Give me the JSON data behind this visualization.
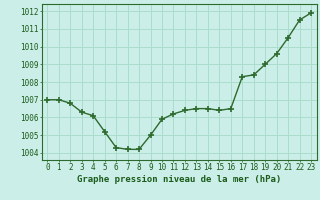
{
  "x": [
    0,
    1,
    2,
    3,
    4,
    5,
    6,
    7,
    8,
    9,
    10,
    11,
    12,
    13,
    14,
    15,
    16,
    17,
    18,
    19,
    20,
    21,
    22,
    23
  ],
  "y": [
    1007.0,
    1007.0,
    1006.8,
    1006.3,
    1006.1,
    1005.2,
    1004.3,
    1004.2,
    1004.2,
    1005.0,
    1005.9,
    1006.2,
    1006.4,
    1006.5,
    1006.5,
    1006.4,
    1006.5,
    1008.3,
    1008.4,
    1009.0,
    1009.6,
    1010.5,
    1011.5,
    1011.9
  ],
  "line_color": "#2d6a2d",
  "marker": "+",
  "marker_size": 4,
  "marker_lw": 1.2,
  "bg_color": "#cceee8",
  "grid_color": "#aaddcc",
  "ylabel_ticks": [
    1004,
    1005,
    1006,
    1007,
    1008,
    1009,
    1010,
    1011,
    1012
  ],
  "ylim": [
    1003.6,
    1012.4
  ],
  "xlim": [
    -0.5,
    23.5
  ],
  "xlabel": "Graphe pression niveau de la mer (hPa)",
  "xlabel_color": "#1a5c1a",
  "tick_color": "#1a5c1a",
  "spine_color": "#2d6a2d",
  "axis_label_fontsize": 6.5,
  "tick_fontsize": 5.5,
  "linewidth": 1.0
}
